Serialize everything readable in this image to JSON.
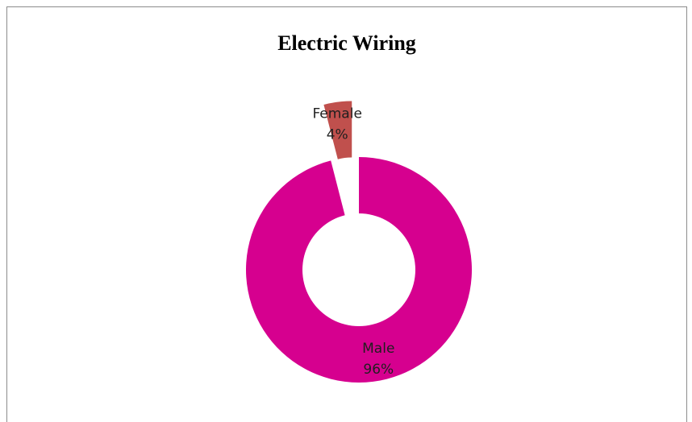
{
  "chart_data": {
    "type": "pie",
    "variant": "donut",
    "title": "Electric Wiring",
    "legend": "none",
    "slices": [
      {
        "category": "Male",
        "percent": 96,
        "percent_label": "96%",
        "color": "#d6008f",
        "exploded": false
      },
      {
        "category": "Female",
        "percent": 4,
        "percent_label": "4%",
        "color": "#c0504d",
        "exploded": true
      }
    ]
  }
}
